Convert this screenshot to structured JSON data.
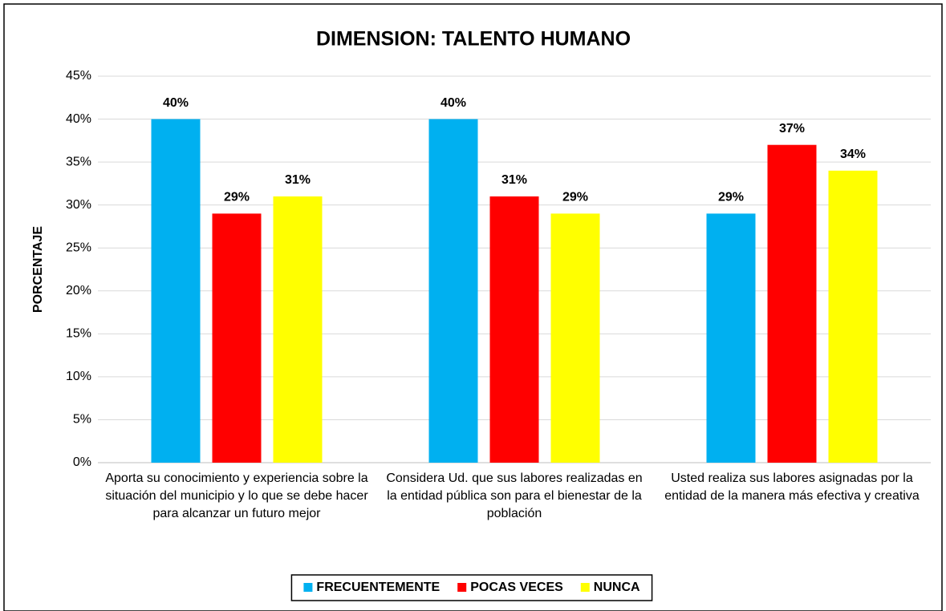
{
  "chart_data": {
    "type": "bar",
    "title": "DIMENSION: TALENTO HUMANO",
    "y_label": "PORCENTAJE",
    "categories": [
      "Aporta su conocimiento y experiencia sobre la situación del municipio y lo que se debe hacer para alcanzar un futuro mejor",
      "Considera Ud. que sus labores realizadas en la entidad pública son para el bienestar de la población",
      "Usted realiza sus labores asignadas por la entidad de la manera más efectiva y creativa"
    ],
    "series": [
      {
        "name": "FRECUENTEMENTE",
        "color": "#00b0f0",
        "values": [
          40,
          40,
          29
        ],
        "value_labels": [
          "40%",
          "40%",
          "29%"
        ]
      },
      {
        "name": "POCAS VECES",
        "color": "#ff0000",
        "values": [
          29,
          31,
          37
        ],
        "value_labels": [
          "29%",
          "31%",
          "37%"
        ]
      },
      {
        "name": "NUNCA",
        "color": "#ffff00",
        "values": [
          31,
          29,
          34
        ],
        "value_labels": [
          "31%",
          "29%",
          "34%"
        ]
      }
    ],
    "ylim": [
      0,
      45
    ],
    "yticks": [
      {
        "value": 0,
        "label": "0%"
      },
      {
        "value": 5,
        "label": "5%"
      },
      {
        "value": 10,
        "label": "10%"
      },
      {
        "value": 15,
        "label": "15%"
      },
      {
        "value": 20,
        "label": "20%"
      },
      {
        "value": 25,
        "label": "25%"
      },
      {
        "value": 30,
        "label": "30%"
      },
      {
        "value": 35,
        "label": "35%"
      },
      {
        "value": 40,
        "label": "40%"
      },
      {
        "value": 45,
        "label": "45%"
      }
    ],
    "grid": true,
    "legend": "bottom"
  }
}
